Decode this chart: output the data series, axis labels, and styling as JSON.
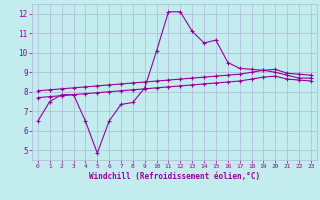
{
  "xlabel": "Windchill (Refroidissement éolien,°C)",
  "xlim": [
    -0.5,
    23.5
  ],
  "ylim": [
    4.5,
    12.5
  ],
  "yticks": [
    5,
    6,
    7,
    8,
    9,
    10,
    11,
    12
  ],
  "xticks": [
    0,
    1,
    2,
    3,
    4,
    5,
    6,
    7,
    8,
    9,
    10,
    11,
    12,
    13,
    14,
    15,
    16,
    17,
    18,
    19,
    20,
    21,
    22,
    23
  ],
  "bg_color": "#c2ecee",
  "grid_color": "#b0b8d8",
  "line_color": "#990099",
  "line1_x": [
    0,
    1,
    2,
    3,
    4,
    5,
    6,
    7,
    8,
    9,
    10,
    11,
    12,
    13,
    14,
    15,
    16,
    17,
    18,
    19,
    20,
    21,
    22,
    23
  ],
  "line1_y": [
    6.5,
    7.5,
    7.85,
    7.85,
    6.5,
    4.85,
    6.5,
    7.35,
    7.45,
    8.2,
    10.1,
    12.1,
    12.1,
    11.1,
    10.5,
    10.65,
    9.5,
    9.2,
    9.15,
    9.1,
    9.0,
    8.85,
    8.7,
    8.7
  ],
  "line2_x": [
    0,
    1,
    2,
    3,
    4,
    5,
    6,
    7,
    8,
    9,
    10,
    11,
    12,
    13,
    14,
    15,
    16,
    17,
    18,
    19,
    20,
    21,
    22,
    23
  ],
  "line2_y": [
    8.05,
    8.1,
    8.15,
    8.2,
    8.25,
    8.3,
    8.35,
    8.4,
    8.45,
    8.5,
    8.55,
    8.6,
    8.65,
    8.7,
    8.75,
    8.8,
    8.85,
    8.9,
    9.0,
    9.1,
    9.15,
    8.95,
    8.9,
    8.85
  ],
  "line3_x": [
    0,
    1,
    2,
    3,
    4,
    5,
    6,
    7,
    8,
    9,
    10,
    11,
    12,
    13,
    14,
    15,
    16,
    17,
    18,
    19,
    20,
    21,
    22,
    23
  ],
  "line3_y": [
    7.7,
    7.75,
    7.8,
    7.85,
    7.9,
    7.95,
    8.0,
    8.05,
    8.1,
    8.15,
    8.2,
    8.25,
    8.3,
    8.35,
    8.4,
    8.45,
    8.5,
    8.55,
    8.65,
    8.75,
    8.8,
    8.65,
    8.6,
    8.55
  ]
}
